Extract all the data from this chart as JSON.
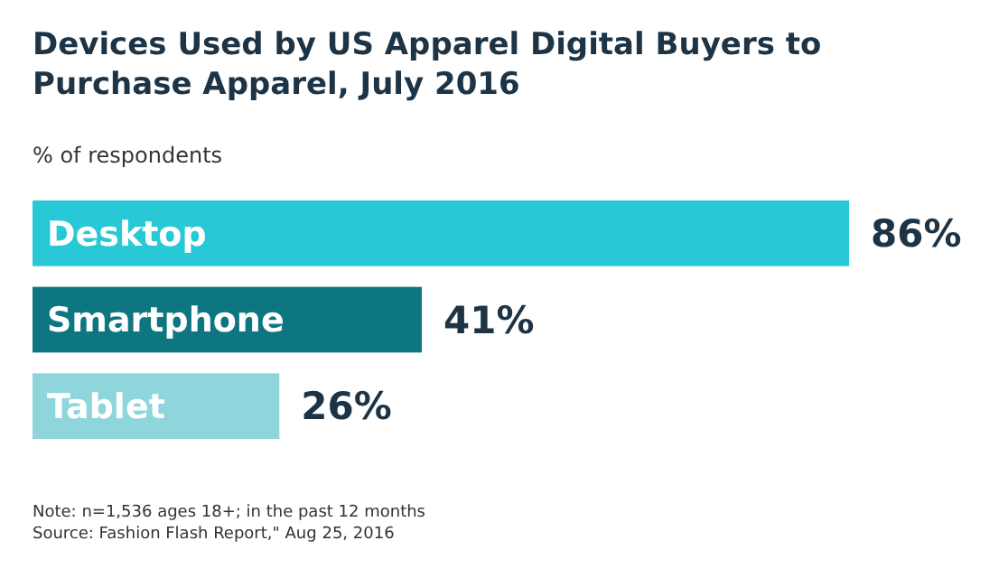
{
  "chart_data": {
    "type": "bar",
    "orientation": "horizontal",
    "title": "Devices Used by US Apparel Digital Buyers to Purchase Apparel, July 2016",
    "subtitle": "% of respondents",
    "categories": [
      "Desktop",
      "Smartphone",
      "Tablet"
    ],
    "values": [
      86,
      41,
      26
    ],
    "colors": [
      "#29c8d6",
      "#0d7680",
      "#8fd5dc"
    ],
    "data_labels": true,
    "value_labels": [
      "86%",
      "41%",
      "26%"
    ],
    "annotations": [
      "Note: n=1,536 ages 18+; in the past 12 months",
      "Source: Fashion Flash Report,\" Aug 25, 2016"
    ]
  }
}
